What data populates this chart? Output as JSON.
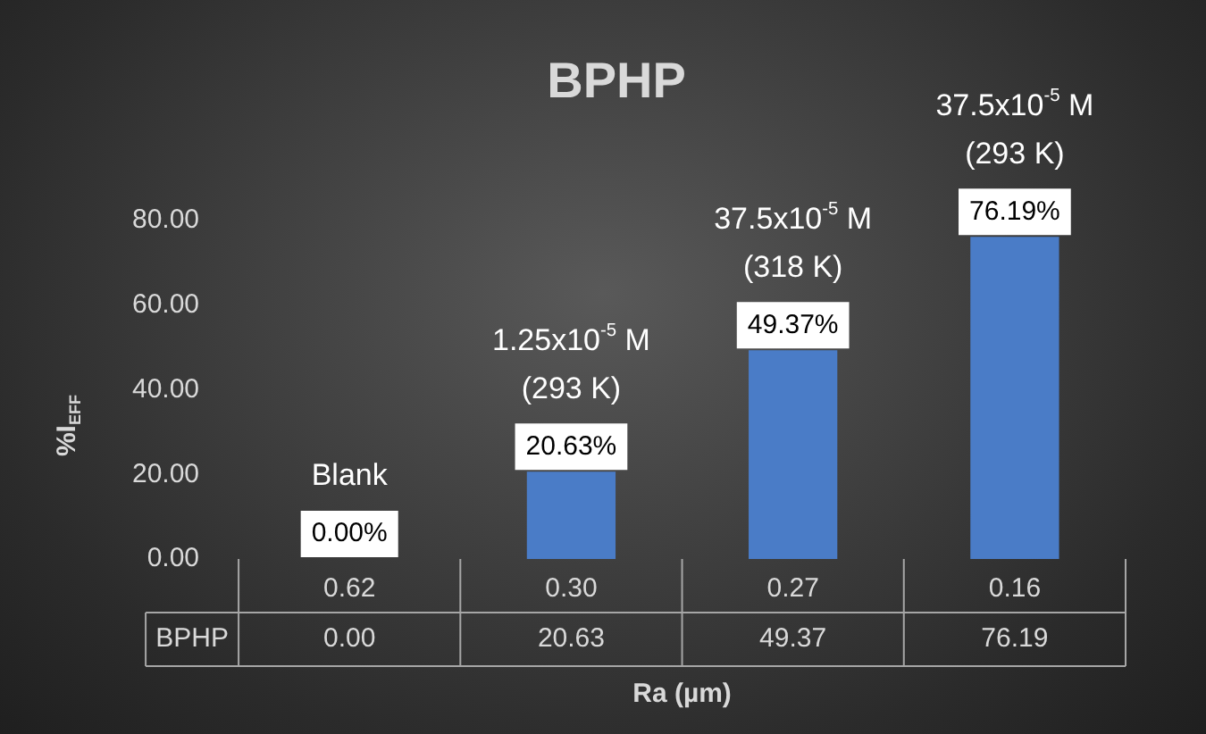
{
  "chart_data": {
    "type": "bar",
    "title": "BPHP",
    "ylabel": "%I$_{EFF}$",
    "xlabel": "Ra (µm)",
    "categories": [
      "0.62",
      "0.30",
      "0.27",
      "0.16"
    ],
    "series": [
      {
        "name": "BPHP",
        "color": "#4a7cc7",
        "values": [
          0,
          20.63,
          49.37,
          76.19
        ],
        "value_labels": [
          "0.00%",
          "20.63%",
          "49.37%",
          "76.19%"
        ]
      }
    ],
    "ylim": [
      0,
      80
    ],
    "yticks": [
      {
        "value": 0,
        "label": "0.00"
      },
      {
        "value": 20,
        "label": "20.00"
      },
      {
        "value": 40,
        "label": "40.00"
      },
      {
        "value": 60,
        "label": "60.00"
      },
      {
        "value": 80,
        "label": "80.00"
      }
    ],
    "grid": false,
    "legend": false,
    "annotations": [
      {
        "text": "Blank",
        "x": "0.62",
        "y": 0
      },
      {
        "text": "1.25x10$^{-5}$ M\n(293 K)",
        "x": "0.30",
        "y": 20.63
      },
      {
        "text": "37.5x10$^{-5}$ M\n(318 K)",
        "x": "0.27",
        "y": 49.37
      },
      {
        "text": "37.5x10$^{-5}$ M\n(293 K)",
        "x": "0.16",
        "y": 76.19
      },
      "0.00",
      "20.63",
      "49.37",
      "76.19"
    ]
  }
}
